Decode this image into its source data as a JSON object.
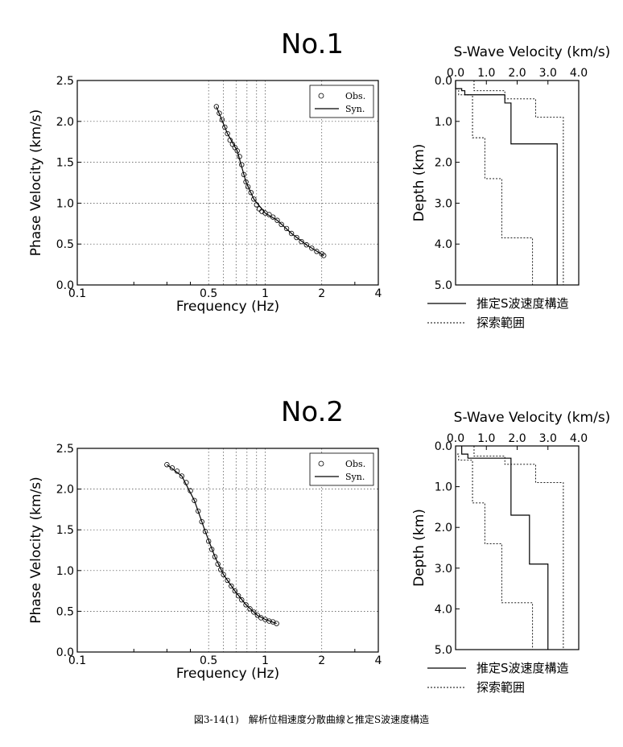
{
  "caption": "図3-14(1)　解析位相速度分散曲線と推定S波速度構造",
  "chart_data": [
    {
      "type": "scatter",
      "title": "No.1",
      "xlabel": "Frequency (Hz)",
      "ylabel": "Phase Velocity (km/s)",
      "xscale": "log",
      "xlim": [
        0.1,
        4
      ],
      "ylim": [
        0,
        2.5
      ],
      "xticks": [
        "0.1",
        "0.5",
        "1",
        "2",
        "4"
      ],
      "yticks": [
        "0.0",
        "0.5",
        "1.0",
        "1.5",
        "2.0",
        "2.5"
      ],
      "legend": {
        "position": "top-right",
        "entries": [
          "Obs.",
          "Syn."
        ]
      },
      "series": [
        {
          "name": "Obs.",
          "x": [
            0.55,
            0.57,
            0.59,
            0.61,
            0.63,
            0.65,
            0.67,
            0.69,
            0.71,
            0.73,
            0.75,
            0.77,
            0.79,
            0.81,
            0.84,
            0.87,
            0.9,
            0.93,
            0.96,
            1.0,
            1.05,
            1.1,
            1.16,
            1.22,
            1.3,
            1.38,
            1.47,
            1.56,
            1.66,
            1.77,
            1.88,
            2.0,
            2.05
          ],
          "y": [
            2.18,
            2.1,
            2.02,
            1.93,
            1.85,
            1.77,
            1.72,
            1.68,
            1.64,
            1.57,
            1.47,
            1.35,
            1.26,
            1.2,
            1.13,
            1.05,
            0.98,
            0.93,
            0.9,
            0.88,
            0.86,
            0.83,
            0.79,
            0.74,
            0.69,
            0.63,
            0.58,
            0.53,
            0.49,
            0.45,
            0.41,
            0.38,
            0.36
          ]
        },
        {
          "name": "Syn.",
          "x": [
            0.55,
            0.63,
            0.71,
            0.79,
            0.87,
            1.0,
            1.16,
            1.38,
            1.66,
            2.05
          ],
          "y": [
            2.18,
            1.85,
            1.64,
            1.26,
            1.05,
            0.88,
            0.79,
            0.63,
            0.49,
            0.36
          ]
        }
      ]
    },
    {
      "type": "line",
      "title": "S-Wave Velocity (km/s)",
      "xlabel": "S-Wave Velocity (km/s)",
      "ylabel": "Depth (km)",
      "xlim": [
        0,
        4.0
      ],
      "ylim": [
        0,
        5.0
      ],
      "xticks": [
        "0.0",
        "1.0",
        "2.0",
        "3.0",
        "4.0"
      ],
      "yticks": [
        "0.0",
        "1.0",
        "2.0",
        "3.0",
        "4.0",
        "5.0"
      ],
      "legend": {
        "position": "bottom",
        "entries": [
          "推定S波速度構造",
          "探索範囲"
        ]
      },
      "series": [
        {
          "name": "推定S波速度構造",
          "steps": [
            [
              0.0,
              0.0,
              0.2
            ],
            [
              0.2,
              0.2,
              0.25
            ],
            [
              0.3,
              0.25,
              0.35
            ],
            [
              1.6,
              0.35,
              0.55
            ],
            [
              1.8,
              0.55,
              1.55
            ],
            [
              3.3,
              1.55,
              5.0
            ]
          ]
        },
        {
          "name": "探索範囲",
          "part": "min",
          "steps": [
            [
              0.0,
              0.0,
              0.2
            ],
            [
              0.1,
              0.2,
              0.35
            ],
            [
              0.55,
              0.35,
              1.4
            ],
            [
              0.95,
              1.4,
              2.4
            ],
            [
              1.5,
              2.4,
              3.85
            ],
            [
              2.5,
              3.85,
              5.0
            ]
          ]
        },
        {
          "name": "探索範囲",
          "part": "max",
          "steps": [
            [
              0.6,
              0.0,
              0.25
            ],
            [
              1.6,
              0.25,
              0.45
            ],
            [
              2.6,
              0.45,
              0.9
            ],
            [
              3.5,
              0.9,
              5.0
            ]
          ]
        }
      ]
    },
    {
      "type": "scatter",
      "title": "No.2",
      "xlabel": "Frequency (Hz)",
      "ylabel": "Phase Velocity (km/s)",
      "xscale": "log",
      "xlim": [
        0.1,
        4
      ],
      "ylim": [
        0,
        2.5
      ],
      "xticks": [
        "0.1",
        "0.5",
        "1",
        "2",
        "4"
      ],
      "yticks": [
        "0.0",
        "0.5",
        "1.0",
        "1.5",
        "2.0",
        "2.5"
      ],
      "legend": {
        "position": "top-right",
        "entries": [
          "Obs.",
          "Syn."
        ]
      },
      "series": [
        {
          "name": "Obs.",
          "x": [
            0.3,
            0.32,
            0.34,
            0.36,
            0.38,
            0.4,
            0.42,
            0.44,
            0.46,
            0.48,
            0.5,
            0.52,
            0.54,
            0.56,
            0.58,
            0.6,
            0.63,
            0.66,
            0.69,
            0.72,
            0.75,
            0.79,
            0.83,
            0.87,
            0.91,
            0.95,
            1.0,
            1.05,
            1.1,
            1.15
          ],
          "y": [
            2.3,
            2.26,
            2.22,
            2.16,
            2.08,
            1.98,
            1.86,
            1.73,
            1.6,
            1.48,
            1.36,
            1.26,
            1.17,
            1.08,
            1.01,
            0.95,
            0.88,
            0.81,
            0.75,
            0.69,
            0.64,
            0.58,
            0.53,
            0.49,
            0.45,
            0.42,
            0.4,
            0.38,
            0.37,
            0.35
          ]
        },
        {
          "name": "Syn.",
          "x": [
            0.3,
            0.36,
            0.42,
            0.48,
            0.54,
            0.6,
            0.69,
            0.79,
            0.91,
            1.0,
            1.15
          ],
          "y": [
            2.3,
            2.16,
            1.86,
            1.48,
            1.17,
            0.95,
            0.75,
            0.58,
            0.45,
            0.4,
            0.35
          ]
        }
      ]
    },
    {
      "type": "line",
      "title": "S-Wave Velocity (km/s)",
      "xlabel": "S-Wave Velocity (km/s)",
      "ylabel": "Depth (km)",
      "xlim": [
        0,
        4.0
      ],
      "ylim": [
        0,
        5.0
      ],
      "xticks": [
        "0.0",
        "1.0",
        "2.0",
        "3.0",
        "4.0"
      ],
      "yticks": [
        "0.0",
        "1.0",
        "2.0",
        "3.0",
        "4.0",
        "5.0"
      ],
      "legend": {
        "position": "bottom",
        "entries": [
          "推定S波速度構造",
          "探索範囲"
        ]
      },
      "series": [
        {
          "name": "推定S波速度構造",
          "steps": [
            [
              0.2,
              0.0,
              0.2
            ],
            [
              0.4,
              0.2,
              0.3
            ],
            [
              1.8,
              0.3,
              1.7
            ],
            [
              2.4,
              1.7,
              2.9
            ],
            [
              3.0,
              2.9,
              5.0
            ]
          ]
        },
        {
          "name": "探索範囲",
          "part": "min",
          "steps": [
            [
              0.0,
              0.0,
              0.2
            ],
            [
              0.1,
              0.2,
              0.35
            ],
            [
              0.55,
              0.35,
              1.4
            ],
            [
              0.95,
              1.4,
              2.4
            ],
            [
              1.5,
              2.4,
              3.85
            ],
            [
              2.5,
              3.85,
              5.0
            ]
          ]
        },
        {
          "name": "探索範囲",
          "part": "max",
          "steps": [
            [
              0.6,
              0.0,
              0.25
            ],
            [
              1.6,
              0.25,
              0.45
            ],
            [
              2.6,
              0.45,
              0.9
            ],
            [
              3.5,
              0.9,
              5.0
            ]
          ]
        }
      ]
    }
  ]
}
